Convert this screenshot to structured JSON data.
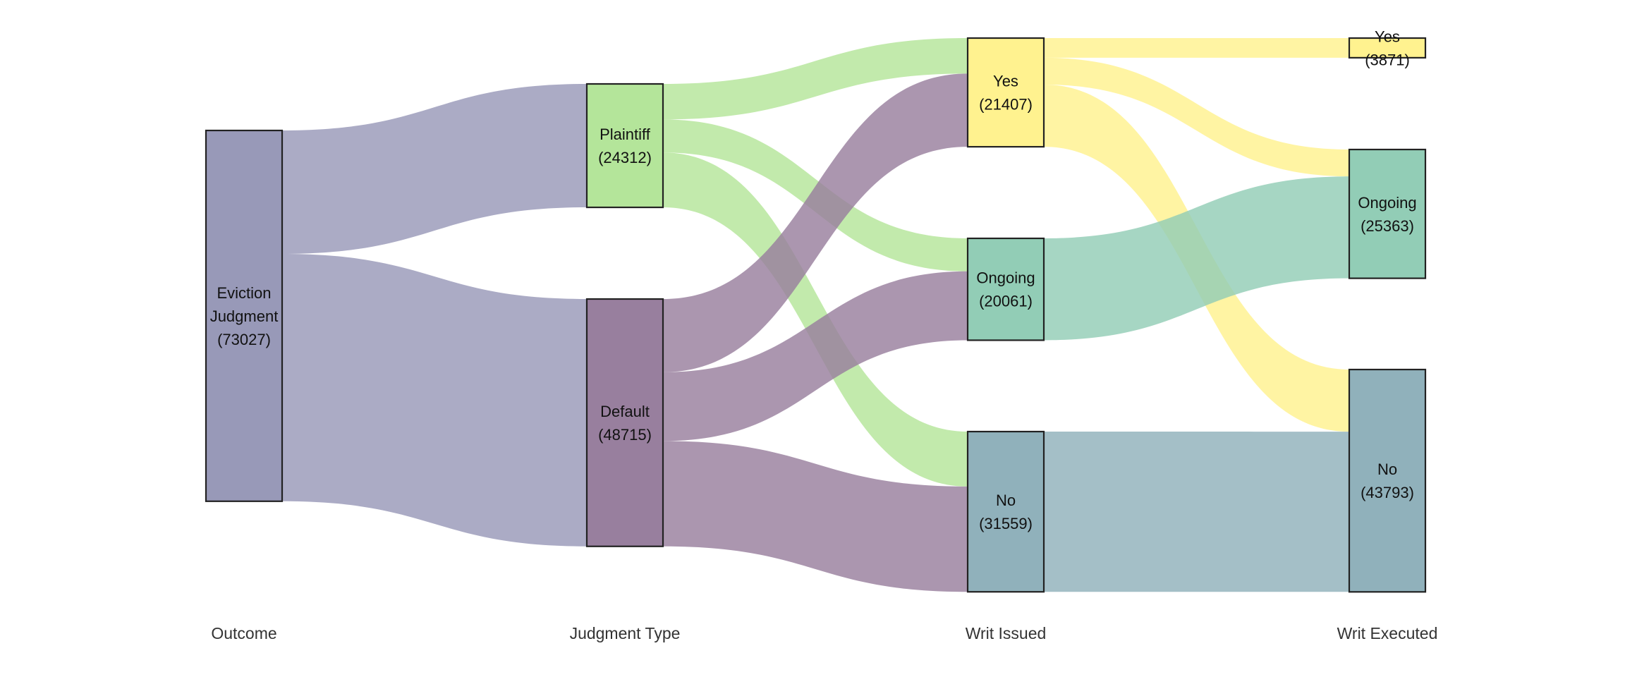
{
  "chart_data": {
    "type": "sankey",
    "axes": [
      "Outcome",
      "Judgment Type",
      "Writ Issued",
      "Writ Executed"
    ],
    "nodes": [
      {
        "id": "eviction",
        "axis": 0,
        "lines": [
          "Eviction",
          "Judgment",
          "(73027)"
        ],
        "value": 73027,
        "color": "#9899b8"
      },
      {
        "id": "plaintiff",
        "axis": 1,
        "lines": [
          "Plaintiff",
          "(24312)"
        ],
        "value": 24312,
        "color": "#b4e59a"
      },
      {
        "id": "default",
        "axis": 1,
        "lines": [
          "Default",
          "(48715)"
        ],
        "value": 48715,
        "color": "#987f9e"
      },
      {
        "id": "wi_yes",
        "axis": 2,
        "lines": [
          "Yes",
          "(21407)"
        ],
        "value": 21407,
        "color": "#fff28f"
      },
      {
        "id": "wi_ongoing",
        "axis": 2,
        "lines": [
          "Ongoing",
          "(20061)"
        ],
        "value": 20061,
        "color": "#92cdb6"
      },
      {
        "id": "wi_no",
        "axis": 2,
        "lines": [
          "No",
          "(31559)"
        ],
        "value": 31559,
        "color": "#90b1bb"
      },
      {
        "id": "we_yes",
        "axis": 3,
        "lines": [
          "Yes",
          "(3871)"
        ],
        "value": 3871,
        "color": "#fff28f"
      },
      {
        "id": "we_ongoing",
        "axis": 3,
        "lines": [
          "Ongoing",
          "(25363)"
        ],
        "value": 25363,
        "color": "#92cdb6"
      },
      {
        "id": "we_no",
        "axis": 3,
        "lines": [
          "No",
          "(43793)"
        ],
        "value": 43793,
        "color": "#90b1bb"
      }
    ],
    "links": [
      {
        "source": "eviction",
        "target": "plaintiff",
        "value": 24312,
        "color": "#9899b8"
      },
      {
        "source": "eviction",
        "target": "default",
        "value": 48715,
        "color": "#9899b8"
      },
      {
        "source": "plaintiff",
        "target": "wi_yes",
        "value": 7000,
        "color": "#b4e59a"
      },
      {
        "source": "plaintiff",
        "target": "wi_ongoing",
        "value": 6500,
        "color": "#b4e59a"
      },
      {
        "source": "plaintiff",
        "target": "wi_no",
        "value": 10812,
        "color": "#b4e59a"
      },
      {
        "source": "default",
        "target": "wi_yes",
        "value": 14407,
        "color": "#987f9e"
      },
      {
        "source": "default",
        "target": "wi_ongoing",
        "value": 13561,
        "color": "#987f9e"
      },
      {
        "source": "default",
        "target": "wi_no",
        "value": 20747,
        "color": "#987f9e"
      },
      {
        "source": "wi_yes",
        "target": "we_yes",
        "value": 3871,
        "color": "#fff28f"
      },
      {
        "source": "wi_yes",
        "target": "we_ongoing",
        "value": 5302,
        "color": "#fff28f"
      },
      {
        "source": "wi_yes",
        "target": "we_no",
        "value": 12234,
        "color": "#fff28f"
      },
      {
        "source": "wi_ongoing",
        "target": "we_ongoing",
        "value": 20061,
        "color": "#92cdb6"
      },
      {
        "source": "wi_no",
        "target": "we_no",
        "value": 31559,
        "color": "#90b1bb"
      }
    ]
  }
}
